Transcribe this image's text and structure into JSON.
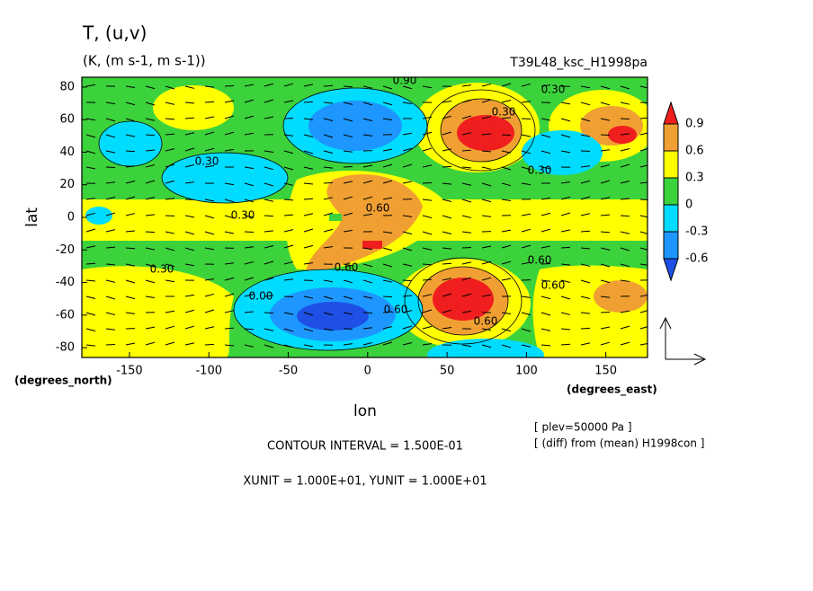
{
  "chart_data": {
    "type": "contour",
    "title": "T, (u,v)",
    "subtitle": "(K, (m s-1, m s-1))",
    "run_label": "T39L48_ksc_H1998pa",
    "xlabel": "lon",
    "ylabel": "lat",
    "xunits": "(degrees_east)",
    "yunits": "(degrees_north)",
    "xlim": [
      -180,
      176.25
    ],
    "ylim": [
      -86,
      86
    ],
    "xticks": [
      -150,
      -100,
      -50,
      0,
      50,
      100,
      150
    ],
    "yticks": [
      -80,
      -60,
      -40,
      -20,
      0,
      20,
      40,
      60,
      80
    ],
    "levels": [
      -0.6,
      -0.3,
      0,
      0.3,
      0.6,
      0.9
    ],
    "colors": [
      "#1e50e6",
      "#1e96ff",
      "#00dcff",
      "#3cd23c",
      "#ffff00",
      "#f0a032",
      "#f01e1e"
    ],
    "contour_labels": [
      "0.90",
      "0.30",
      "0.30",
      "0.30",
      "0.60",
      "0.30",
      "0.60",
      "0.60",
      "0.30",
      "0.60",
      "0.30",
      "0.00",
      "0.60",
      "0.60"
    ],
    "notes": [
      "[ plev=50000 Pa ]",
      "[ (diff) from (mean) H1998con ]"
    ],
    "footer": [
      "CONTOUR INTERVAL = 1.500E-01",
      "XUNIT = 1.000E+01, YUNIT = 1.000E+01"
    ]
  }
}
